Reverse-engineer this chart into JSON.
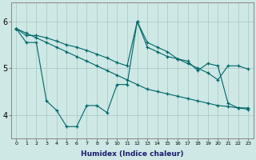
{
  "xlabel": "Humidex (Indice chaleur)",
  "background_color": "#cde8e5",
  "grid_color": "#b0ccc9",
  "line_color": "#006666",
  "xlim": [
    -0.5,
    23.5
  ],
  "ylim": [
    3.5,
    6.4
  ],
  "yticks": [
    4,
    5,
    6
  ],
  "xticks": [
    0,
    1,
    2,
    3,
    4,
    5,
    6,
    7,
    8,
    9,
    10,
    11,
    12,
    13,
    14,
    15,
    16,
    17,
    18,
    19,
    20,
    21,
    22,
    23
  ],
  "s1": [
    5.85,
    5.55,
    5.55,
    4.3,
    4.1,
    3.75,
    3.75,
    4.2,
    4.2,
    4.05,
    4.65,
    4.65,
    6.0,
    5.45,
    5.35,
    5.25,
    5.2,
    5.15,
    4.95,
    5.1,
    5.05,
    4.25,
    4.15,
    4.15
  ],
  "s2": [
    5.85,
    5.7,
    5.7,
    5.65,
    5.58,
    5.5,
    5.45,
    5.38,
    5.3,
    5.22,
    5.12,
    5.05,
    6.0,
    5.55,
    5.45,
    5.35,
    5.2,
    5.1,
    5.0,
    4.9,
    4.75,
    5.05,
    5.05,
    4.98
  ],
  "s3": [
    5.85,
    5.75,
    5.65,
    5.55,
    5.45,
    5.35,
    5.25,
    5.15,
    5.05,
    4.95,
    4.85,
    4.75,
    4.65,
    4.55,
    4.5,
    4.45,
    4.4,
    4.35,
    4.3,
    4.25,
    4.2,
    4.18,
    4.15,
    4.12
  ]
}
